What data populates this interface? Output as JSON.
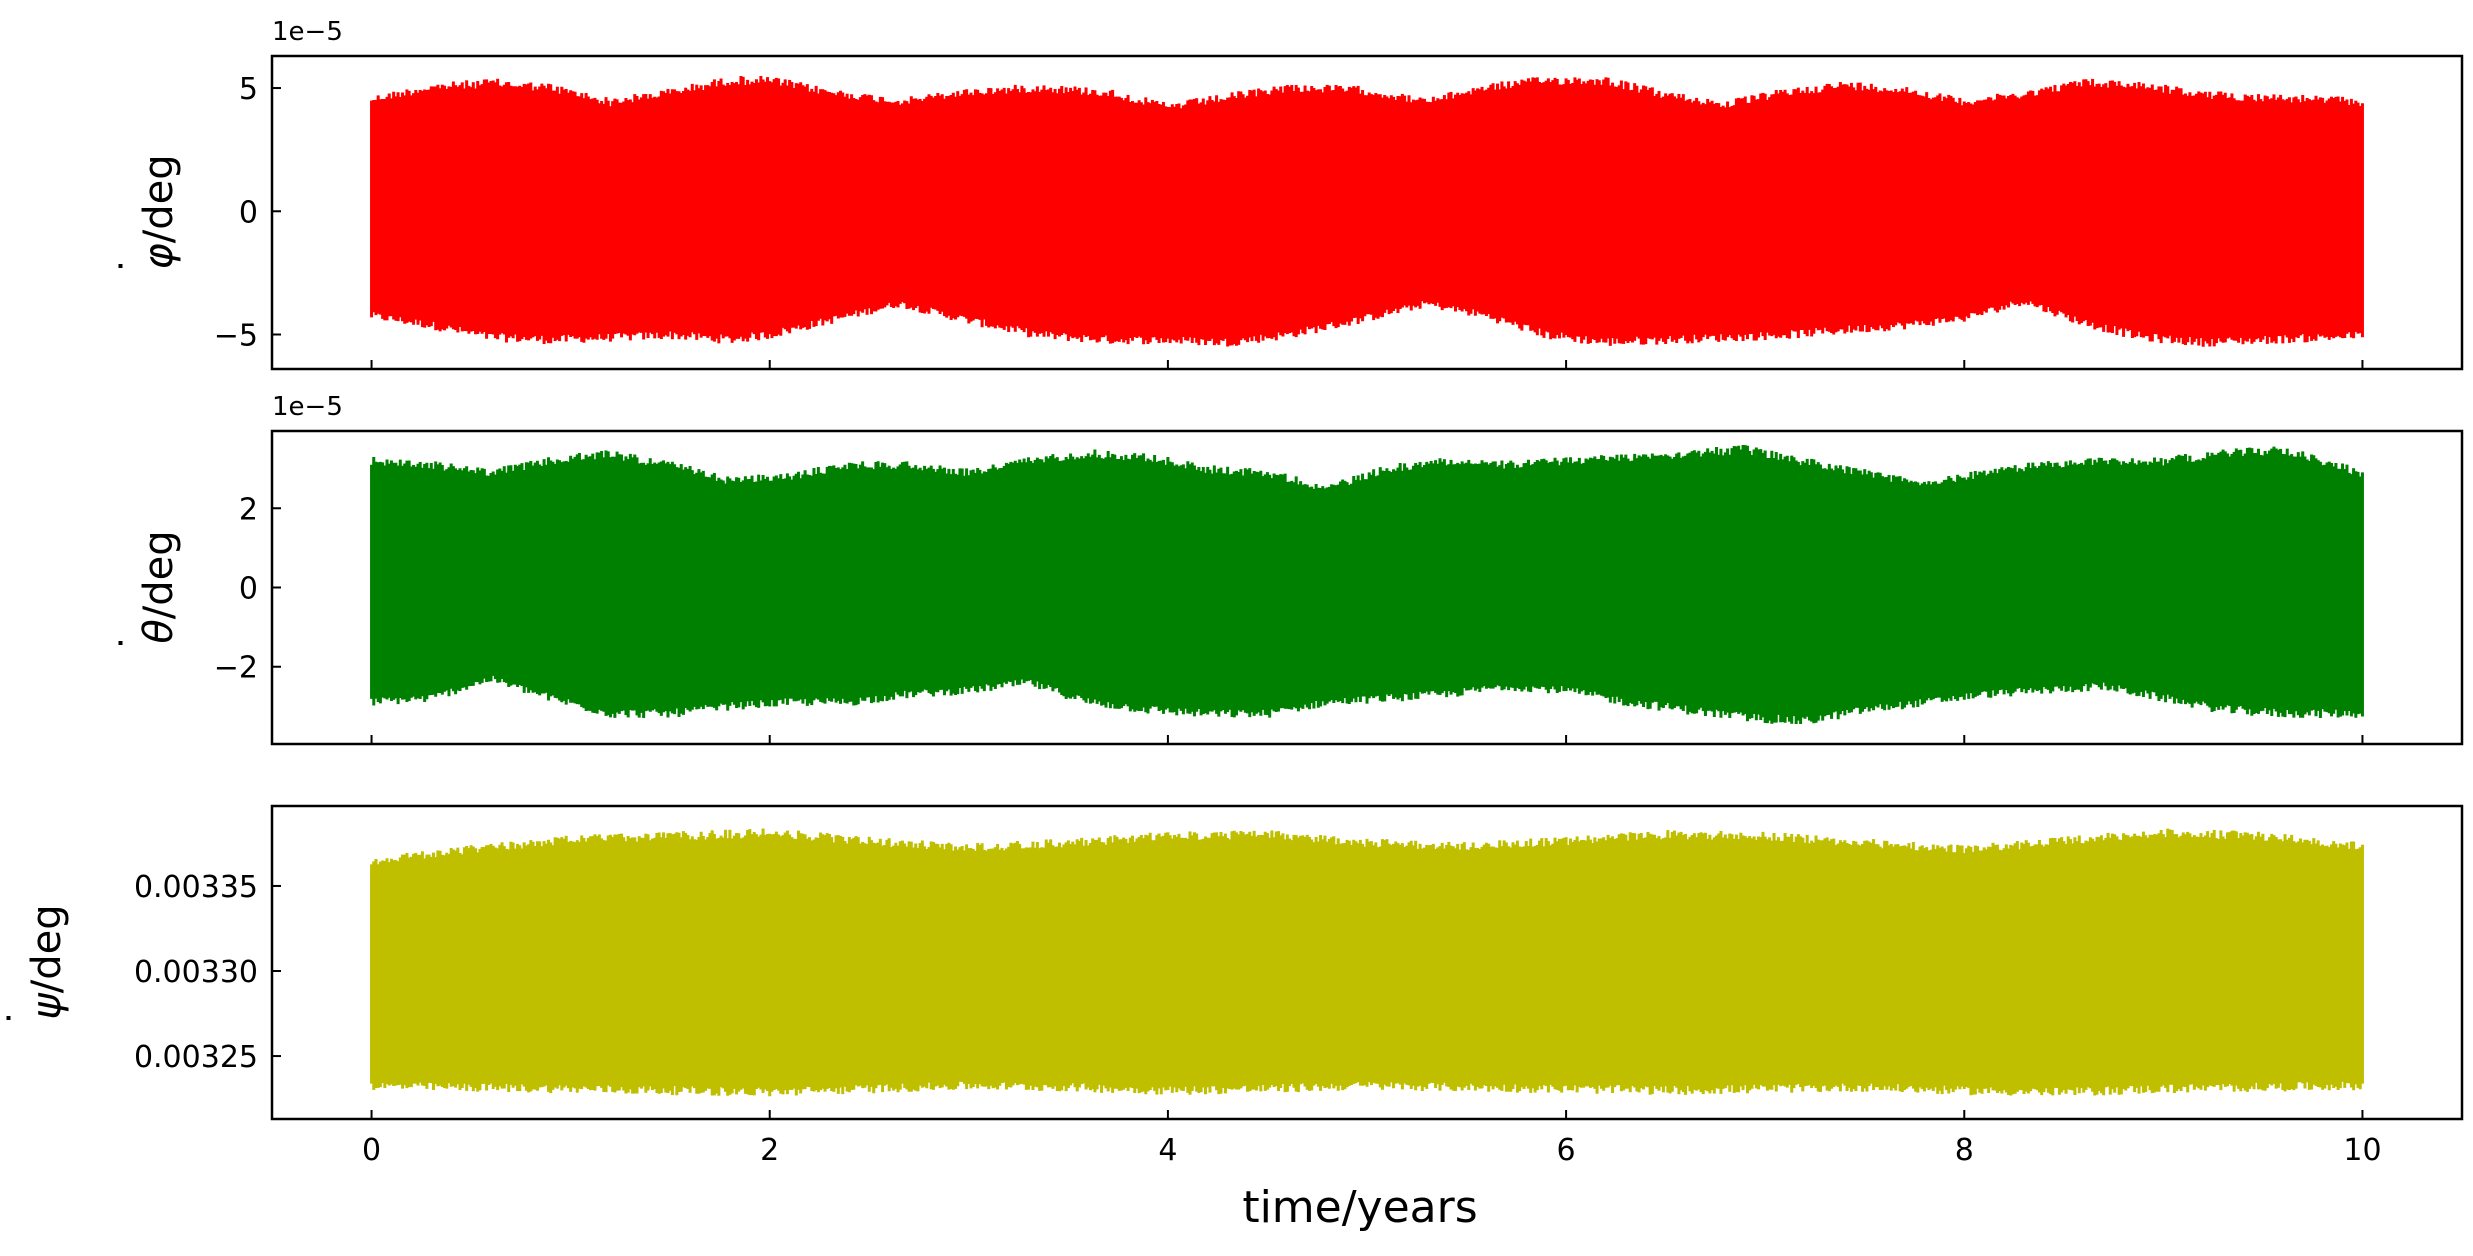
{
  "chart_data": [
    {
      "type": "line",
      "id": "phi",
      "ylabel": "φ̇/deg",
      "ylabel_main": "φ",
      "ylabel_unit": "/deg",
      "offset_text": "1e−5",
      "ylim": [
        -6.4,
        6.3
      ],
      "yticks": [
        -5,
        0,
        5
      ],
      "ytick_labels": [
        "−5",
        "0",
        "5"
      ],
      "color": "#ff0000",
      "grid": false,
      "series": [
        {
          "x": [
            0,
            0.3,
            0.6,
            0.9,
            1.2,
            1.5,
            1.8,
            2.0,
            2.3,
            2.65,
            3.0,
            3.35,
            3.7,
            4.0,
            4.3,
            4.6,
            4.95,
            5.3,
            5.6,
            5.9,
            6.2,
            6.5,
            6.8,
            7.1,
            7.4,
            7.7,
            8.0,
            8.3,
            8.6,
            8.9,
            9.2,
            9.5,
            9.8,
            10.0
          ],
          "upper": [
            4.7,
            5.2,
            5.4,
            5.2,
            4.6,
            5.0,
            5.5,
            5.5,
            5.0,
            4.6,
            5.0,
            5.2,
            5.0,
            4.4,
            4.8,
            5.2,
            5.1,
            4.6,
            5.2,
            5.5,
            5.5,
            4.9,
            4.5,
            5.0,
            5.3,
            5.1,
            4.6,
            4.9,
            5.4,
            5.3,
            4.9,
            4.8,
            4.7,
            4.6
          ],
          "lower": [
            -4.4,
            -4.8,
            -5.3,
            -5.4,
            -5.3,
            -5.2,
            -5.4,
            -5.2,
            -4.6,
            -3.9,
            -4.6,
            -5.2,
            -5.4,
            -5.4,
            -5.5,
            -5.2,
            -4.6,
            -3.9,
            -4.4,
            -5.2,
            -5.5,
            -5.4,
            -5.3,
            -5.2,
            -5.0,
            -4.8,
            -4.5,
            -3.8,
            -4.7,
            -5.3,
            -5.5,
            -5.4,
            -5.3,
            -5.2
          ]
        }
      ]
    },
    {
      "type": "line",
      "id": "theta",
      "ylabel": "θ̇/deg",
      "ylabel_main": "θ",
      "ylabel_unit": "/deg",
      "offset_text": "1e−5",
      "ylim": [
        -3.95,
        3.95
      ],
      "yticks": [
        -2,
        0,
        2
      ],
      "ytick_labels": [
        "−2",
        "0",
        "2"
      ],
      "color": "#008000",
      "grid": false,
      "series": [
        {
          "x": [
            0,
            0.3,
            0.6,
            0.9,
            1.2,
            1.5,
            1.8,
            2.1,
            2.4,
            2.7,
            3.0,
            3.3,
            3.6,
            3.9,
            4.2,
            4.5,
            4.8,
            5.1,
            5.4,
            5.7,
            6.0,
            6.3,
            6.6,
            6.9,
            7.2,
            7.5,
            7.8,
            8.1,
            8.4,
            8.7,
            9.0,
            9.3,
            9.6,
            10.0
          ],
          "upper": [
            3.3,
            3.2,
            3.0,
            3.3,
            3.5,
            3.2,
            2.8,
            2.9,
            3.2,
            3.2,
            3.0,
            3.3,
            3.5,
            3.4,
            3.1,
            3.0,
            2.6,
            3.1,
            3.3,
            3.2,
            3.3,
            3.4,
            3.5,
            3.6,
            3.3,
            3.0,
            2.7,
            3.0,
            3.2,
            3.3,
            3.3,
            3.5,
            3.6,
            3.0
          ],
          "lower": [
            -3.0,
            -2.9,
            -2.4,
            -2.9,
            -3.3,
            -3.3,
            -3.1,
            -3.0,
            -3.0,
            -2.8,
            -2.7,
            -2.5,
            -3.0,
            -3.2,
            -3.3,
            -3.3,
            -3.0,
            -2.9,
            -2.8,
            -2.6,
            -2.7,
            -3.0,
            -3.2,
            -3.4,
            -3.5,
            -3.2,
            -3.0,
            -2.8,
            -2.7,
            -2.6,
            -2.9,
            -3.2,
            -3.3,
            -3.3
          ]
        }
      ]
    },
    {
      "type": "line",
      "id": "psi",
      "ylabel": "ψ̇/deg",
      "ylabel_main": "ψ",
      "ylabel_unit": "/deg",
      "xlabel": "time/years",
      "xlim": [
        -0.5,
        10.5
      ],
      "xticks": [
        0,
        2,
        4,
        6,
        8,
        10
      ],
      "xtick_labels": [
        "0",
        "2",
        "4",
        "6",
        "8",
        "10"
      ],
      "ylim": [
        0.003213,
        0.003397
      ],
      "yticks": [
        0.00325,
        0.0033,
        0.00335
      ],
      "ytick_labels": [
        "0.00325",
        "0.00330",
        "0.00335"
      ],
      "color": "#bfbf00",
      "grid": false,
      "series": [
        {
          "x": [
            0,
            0.5,
            1.0,
            1.5,
            2.0,
            2.5,
            3.0,
            3.5,
            4.0,
            4.5,
            5.0,
            5.5,
            6.0,
            6.5,
            7.0,
            7.5,
            8.0,
            8.5,
            9.0,
            9.5,
            10.0
          ],
          "upper": [
            0.003367,
            0.003374,
            0.00338,
            0.003382,
            0.003384,
            0.003379,
            0.003375,
            0.003378,
            0.003382,
            0.003383,
            0.003378,
            0.003376,
            0.003379,
            0.003383,
            0.003382,
            0.003378,
            0.003374,
            0.003379,
            0.003384,
            0.003382,
            0.003376
          ],
          "lower": [
            0.00323,
            0.003229,
            0.003228,
            0.003227,
            0.003226,
            0.003228,
            0.00323,
            0.003229,
            0.003227,
            0.003228,
            0.00323,
            0.003229,
            0.003228,
            0.003227,
            0.003228,
            0.003229,
            0.003227,
            0.003226,
            0.003228,
            0.003229,
            0.00323
          ]
        }
      ]
    }
  ]
}
